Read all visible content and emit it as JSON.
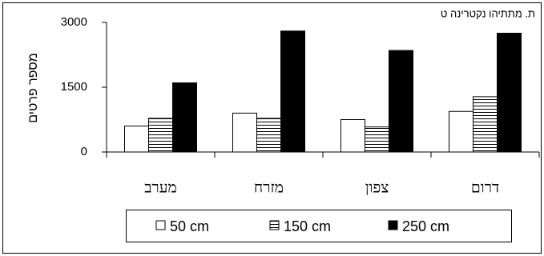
{
  "chart_data": {
    "type": "bar",
    "title": "ת. מתתיהו נקטרינה ט",
    "y_label": "מספר פרטים",
    "categories": [
      "מערב",
      "מזרח",
      "צפון",
      "דרום"
    ],
    "series": [
      {
        "name": "50 cm",
        "color": "#ffffff",
        "values": [
          600,
          900,
          750,
          940
        ]
      },
      {
        "name": "150 cm",
        "color": "#ffffff",
        "hatch": "horizontal",
        "values": [
          780,
          780,
          580,
          1280
        ]
      },
      {
        "name": "250 cm",
        "color": "#000000",
        "values": [
          1600,
          2800,
          2350,
          2750
        ]
      }
    ],
    "ylim": [
      0,
      3000
    ],
    "yticks": [
      0,
      1500,
      3000
    ],
    "grid": false,
    "legend": "bottom"
  }
}
